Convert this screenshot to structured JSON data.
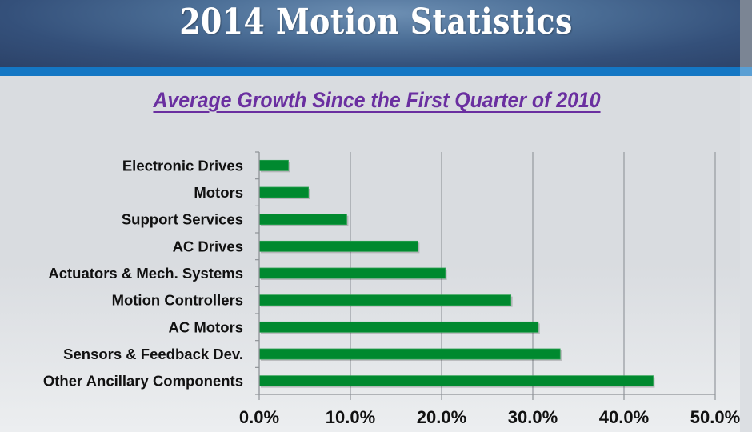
{
  "slide": {
    "title": "2014 Motion Statistics",
    "subtitle": "Average Growth Since the First Quarter of 2010"
  },
  "colors": {
    "bar": "#00892f",
    "subtitle": "#6a2fa0",
    "header_band": "#1477c4"
  },
  "chart_data": {
    "type": "bar",
    "orientation": "horizontal",
    "title": "Average Growth Since the First Quarter of 2010",
    "xlabel": "",
    "ylabel": "",
    "categories": [
      "Electronic Drives",
      "Motors",
      "Support Services",
      "AC Drives",
      "Actuators & Mech. Systems",
      "Motion Controllers",
      "AC Motors",
      "Sensors & Feedback Dev.",
      "Other Ancillary Components"
    ],
    "values": [
      3.2,
      5.4,
      9.6,
      17.4,
      20.4,
      27.6,
      30.6,
      33.0,
      43.2
    ],
    "unit": "%",
    "xlim": [
      0,
      50
    ],
    "xticks": [
      0,
      10,
      20,
      30,
      40,
      50
    ],
    "xtick_labels": [
      "0.0%",
      "10.0%",
      "20.0%",
      "30.0%",
      "40.0%",
      "50.0%"
    ],
    "grid": "vertical",
    "legend": "none"
  }
}
